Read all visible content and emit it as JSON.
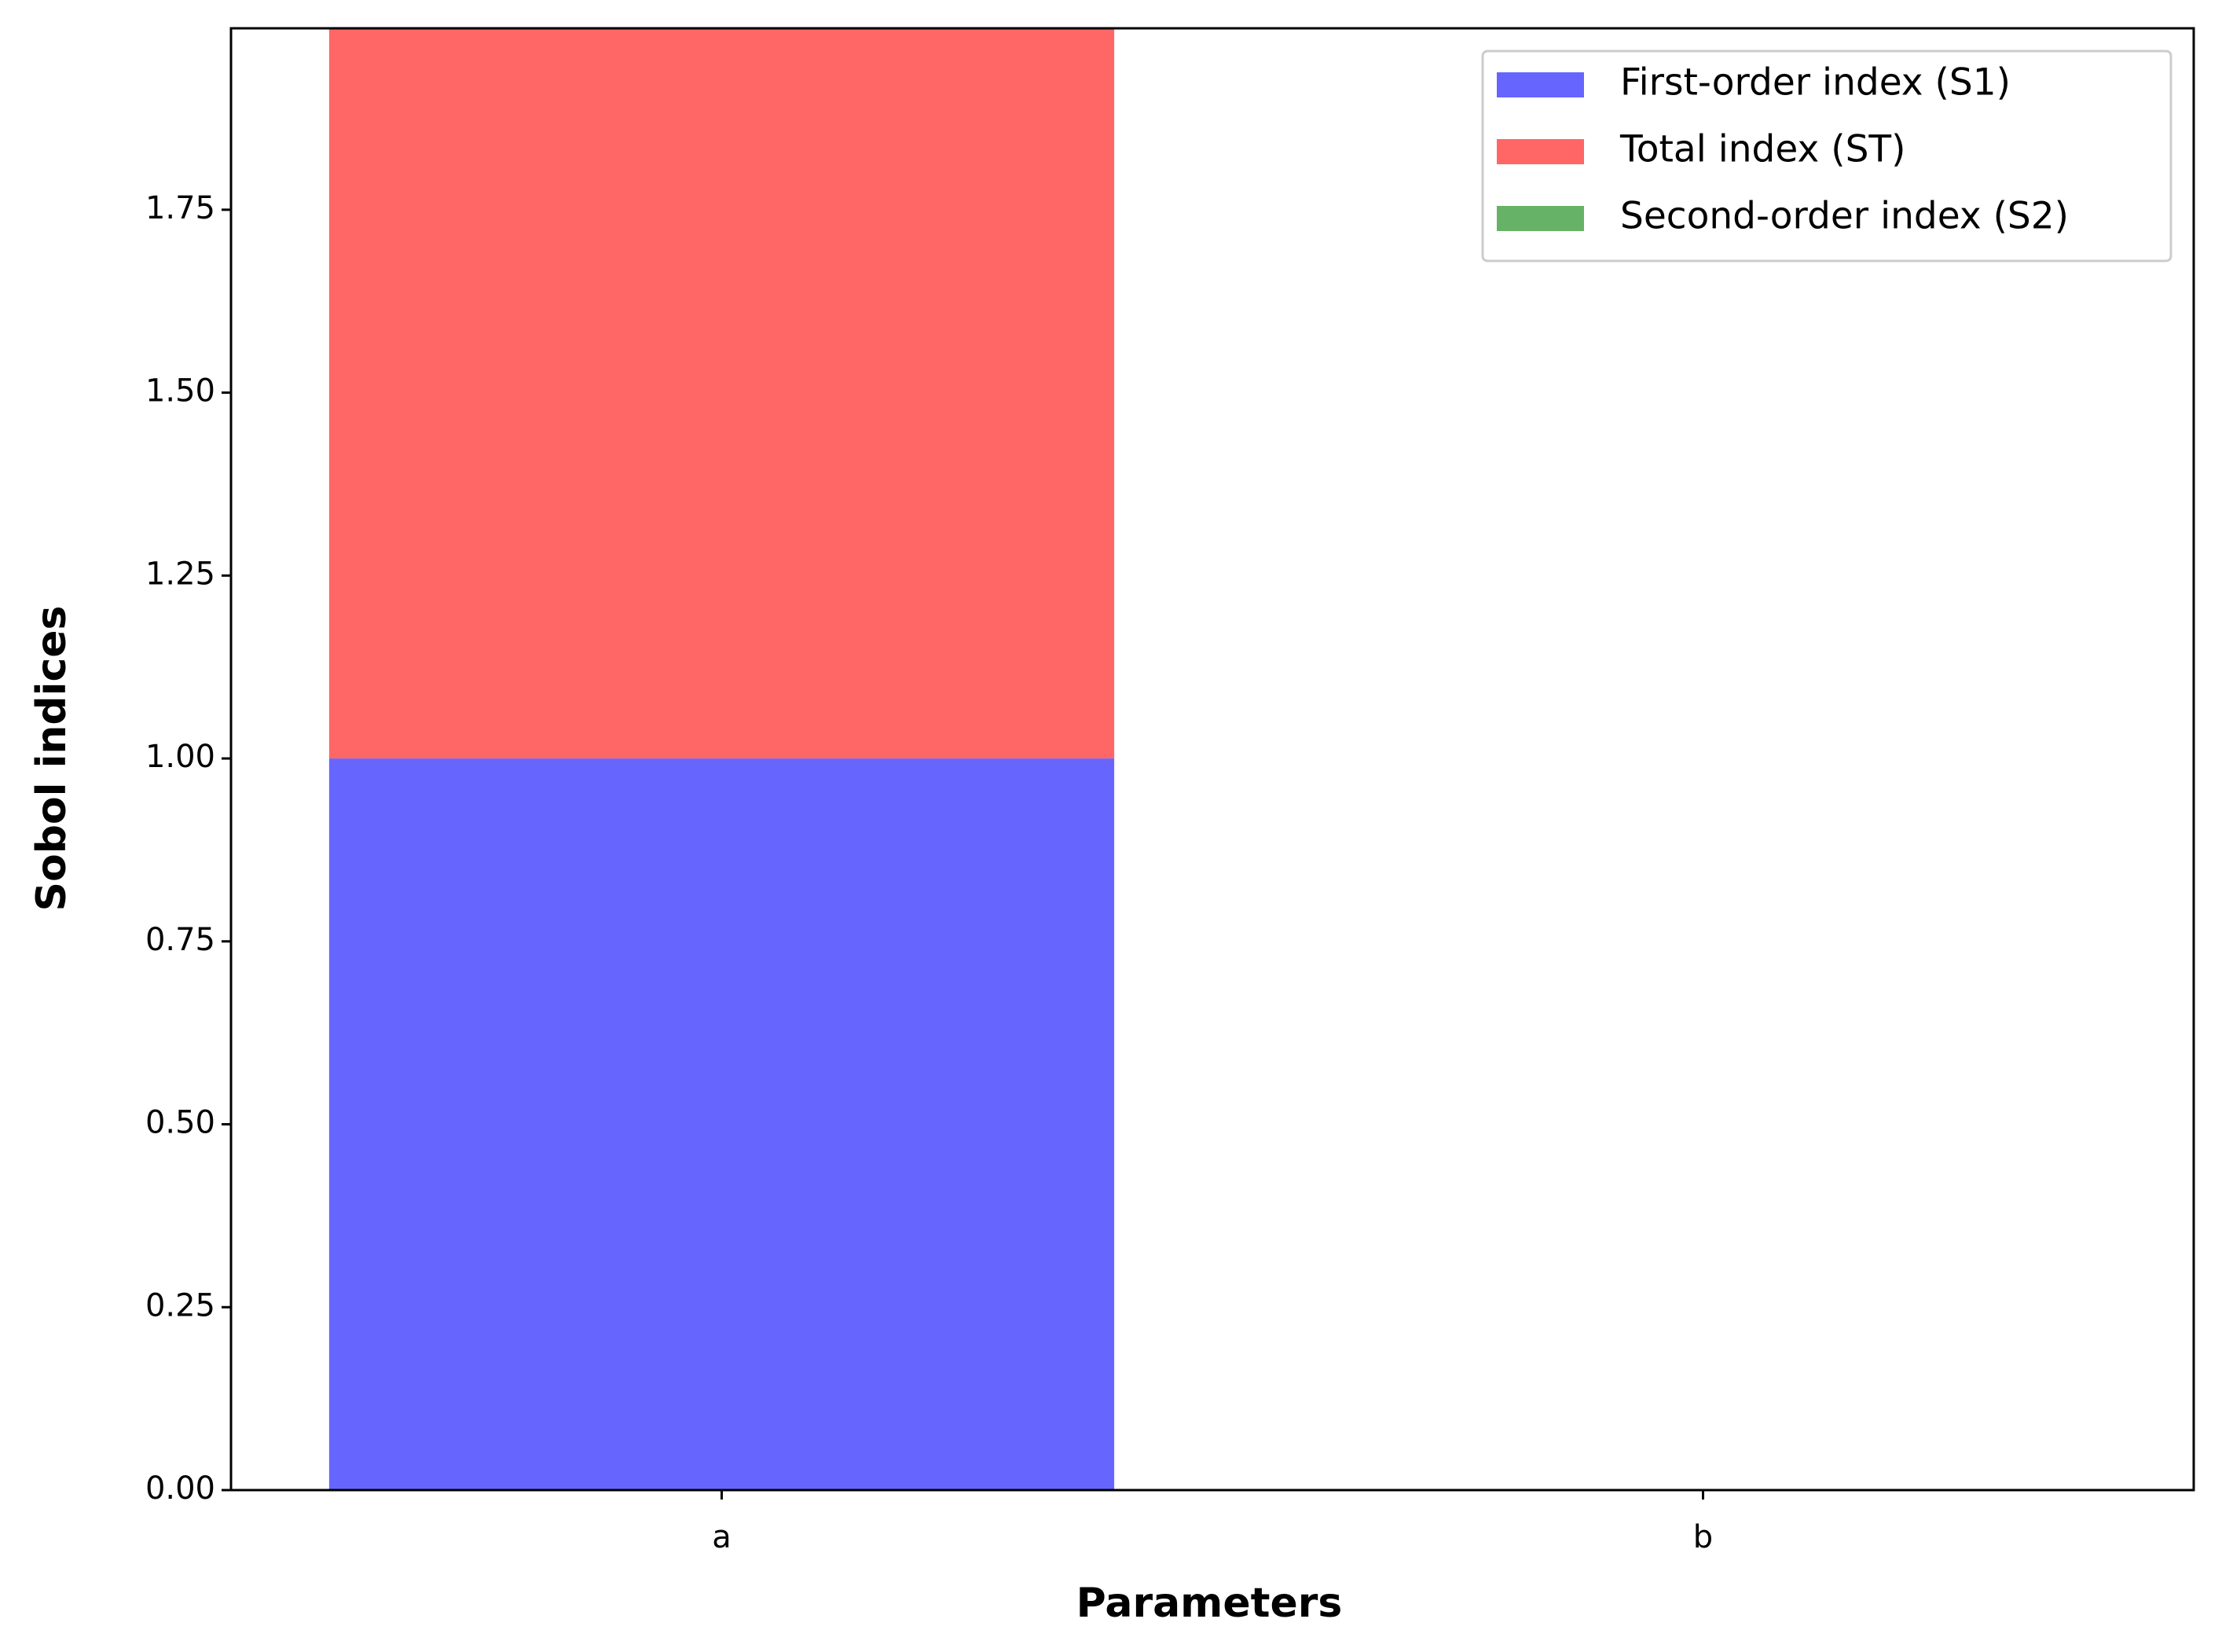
{
  "chart_data": {
    "type": "stacked_bar",
    "xlabel": "Parameters",
    "ylabel": "Sobol indices",
    "categories": [
      "a",
      "b"
    ],
    "series": [
      {
        "name": "First-order index (S1)",
        "color": "#6666ff",
        "values": [
          1.0,
          0
        ]
      },
      {
        "name": "Total index (ST)",
        "color": "#ff6666",
        "values": [
          1.0,
          0
        ]
      },
      {
        "name": "Second-order index (S2)",
        "color": "#66b266",
        "values": [
          0,
          0
        ]
      }
    ],
    "ylim": [
      0,
      1.998
    ],
    "yticks": [
      {
        "value": 0,
        "label": "0.00"
      },
      {
        "value": 0.25,
        "label": "0.25"
      },
      {
        "value": 0.5,
        "label": "0.50"
      },
      {
        "value": 0.75,
        "label": "0.75"
      },
      {
        "value": 1,
        "label": "1.00"
      },
      {
        "value": 1.25,
        "label": "1.25"
      },
      {
        "value": 1.5,
        "label": "1.50"
      },
      {
        "value": 1.75,
        "label": "1.75"
      }
    ],
    "legend": "upper right"
  }
}
